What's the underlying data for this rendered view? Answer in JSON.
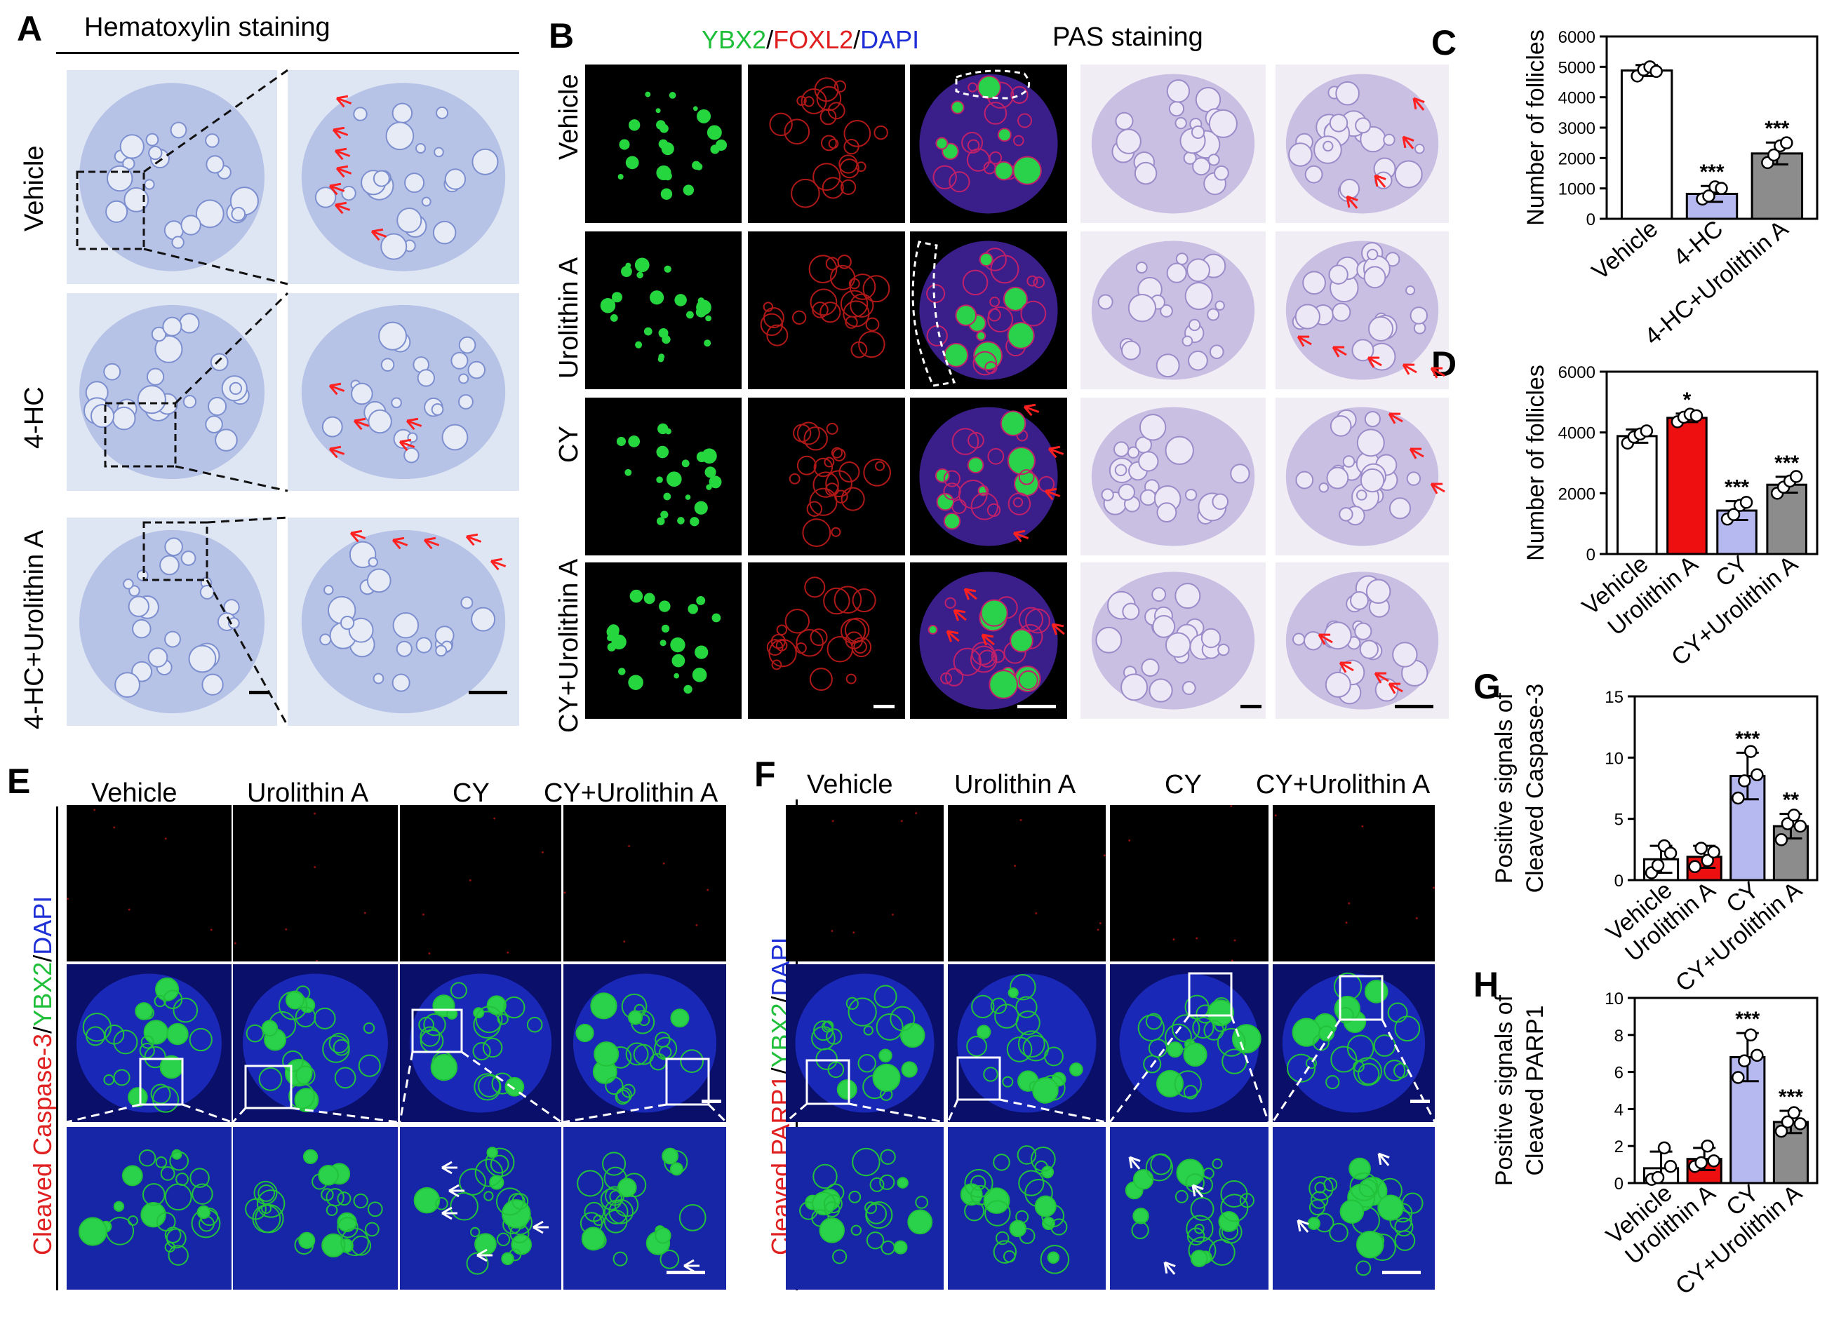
{
  "panel_letters": {
    "A": "A",
    "B": "B",
    "C": "C",
    "D": "D",
    "E": "E",
    "F": "F",
    "G": "G",
    "H": "H"
  },
  "panelA": {
    "title": "Hematoxylin staining",
    "rows": [
      "Vehicle",
      "4-HC",
      "4-HC+Urolithin A"
    ]
  },
  "panelB": {
    "title_parts": [
      {
        "text": "YBX2",
        "color": "#1fbf3a"
      },
      {
        "text": "/",
        "color": "#000000"
      },
      {
        "text": "FOXL2",
        "color": "#e02020"
      },
      {
        "text": "/",
        "color": "#000000"
      },
      {
        "text": "DAPI",
        "color": "#1e2fd6"
      }
    ],
    "pas_title": "PAS staining",
    "rows": [
      "Vehicle",
      "Urolithin A",
      "CY",
      "CY+Urolithin A"
    ]
  },
  "panelE": {
    "columns": [
      "Vehicle",
      "Urolithin A",
      "CY",
      "CY+Urolithin A"
    ],
    "side_label_parts": [
      {
        "text": "Cleaved Caspase-3",
        "color": "#e02020"
      },
      {
        "text": "/",
        "color": "#000000"
      },
      {
        "text": "YBX2",
        "color": "#1fbf3a"
      },
      {
        "text": "/",
        "color": "#000000"
      },
      {
        "text": "DAPI",
        "color": "#1e2fd6"
      }
    ]
  },
  "panelF": {
    "columns": [
      "Vehicle",
      "Urolithin A",
      "CY",
      "CY+Urolithin A"
    ],
    "side_label_parts": [
      {
        "text": "Cleaved PARP1",
        "color": "#e02020"
      },
      {
        "text": "/",
        "color": "#000000"
      },
      {
        "text": "YBX2",
        "color": "#1fbf3a"
      },
      {
        "text": "/",
        "color": "#000000"
      },
      {
        "text": "DAPI",
        "color": "#1e2fd6"
      }
    ]
  },
  "colors": {
    "white_bar": "#ffffff",
    "red_bar": "#ee1010",
    "blue_bar": "#b6b8f0",
    "gray_bar": "#8c8c8c",
    "arrow_red": "#ff2020",
    "arrow_white": "#ffffff"
  },
  "chart_data": [
    {
      "id": "C",
      "type": "bar",
      "ylabel": "Number of follicles",
      "categories": [
        "Vehicle",
        "4-HC",
        "4-HC+Urolithin A"
      ],
      "values": [
        4880,
        820,
        2150
      ],
      "errors": [
        180,
        260,
        360
      ],
      "points": [
        [
          4700,
          4900,
          5000,
          4850
        ],
        [
          650,
          750,
          1050,
          1000
        ],
        [
          1850,
          2100,
          2400,
          2500
        ]
      ],
      "significance": [
        "",
        "***",
        "***"
      ],
      "bar_colors": [
        "#ffffff",
        "#b6b8f0",
        "#8c8c8c"
      ],
      "ylim": [
        0,
        6000
      ],
      "yticks": [
        "0",
        "1000",
        "2000",
        "3000",
        "4000",
        "5000",
        "6000"
      ]
    },
    {
      "id": "D",
      "type": "bar",
      "ylabel": "Number of follicles",
      "categories": [
        "Vehicle",
        "Urolithin A",
        "CY",
        "CY+Urolithin A"
      ],
      "values": [
        3880,
        4480,
        1430,
        2280
      ],
      "errors": [
        220,
        140,
        310,
        260
      ],
      "points": [
        [
          3650,
          3850,
          3950,
          4050
        ],
        [
          4350,
          4500,
          4600,
          4550
        ],
        [
          1150,
          1300,
          1600,
          1700
        ],
        [
          2000,
          2200,
          2400,
          2550
        ]
      ],
      "significance": [
        "",
        "*",
        "***",
        "***"
      ],
      "bar_colors": [
        "#ffffff",
        "#ee1010",
        "#b6b8f0",
        "#8c8c8c"
      ],
      "ylim": [
        0,
        6000
      ],
      "yticks": [
        "0",
        "2000",
        "4000",
        "6000"
      ]
    },
    {
      "id": "G",
      "type": "bar",
      "ylabel": "Positive signals of\nCleaved Caspase-3",
      "categories": [
        "Vehicle",
        "Urolithin A",
        "CY",
        "CY+Urolithin A"
      ],
      "values": [
        1.7,
        1.9,
        8.5,
        4.4
      ],
      "errors": [
        1.1,
        0.9,
        1.9,
        1.0
      ],
      "points": [
        [
          0.6,
          1.2,
          2.8,
          2.2
        ],
        [
          1.1,
          2.6,
          1.6,
          2.3
        ],
        [
          6.7,
          8.1,
          10.5,
          8.6
        ],
        [
          3.3,
          4.6,
          5.3,
          4.4
        ]
      ],
      "significance": [
        "",
        "",
        "***",
        "**"
      ],
      "bar_colors": [
        "#ffffff",
        "#ee1010",
        "#b6b8f0",
        "#8c8c8c"
      ],
      "ylim": [
        0,
        15
      ],
      "yticks": [
        "0",
        "5",
        "10",
        "15"
      ]
    },
    {
      "id": "H",
      "type": "bar",
      "ylabel": "Positive signals of\nCleaved PARP1",
      "categories": [
        "Vehicle",
        "Urolithin A",
        "CY",
        "CY+Urolithin A"
      ],
      "values": [
        0.8,
        1.3,
        6.8,
        3.3
      ],
      "errors": [
        0.9,
        0.6,
        1.3,
        0.6
      ],
      "points": [
        [
          0.2,
          0.3,
          1.9,
          0.9
        ],
        [
          0.9,
          1.1,
          2.0,
          1.2
        ],
        [
          5.7,
          6.6,
          8.0,
          6.9
        ],
        [
          2.8,
          3.3,
          3.8,
          3.2
        ]
      ],
      "significance": [
        "",
        "",
        "***",
        "***"
      ],
      "bar_colors": [
        "#ffffff",
        "#ee1010",
        "#b6b8f0",
        "#8c8c8c"
      ],
      "ylim": [
        0,
        10
      ],
      "yticks": [
        "0",
        "2",
        "4",
        "6",
        "8",
        "10"
      ]
    }
  ]
}
